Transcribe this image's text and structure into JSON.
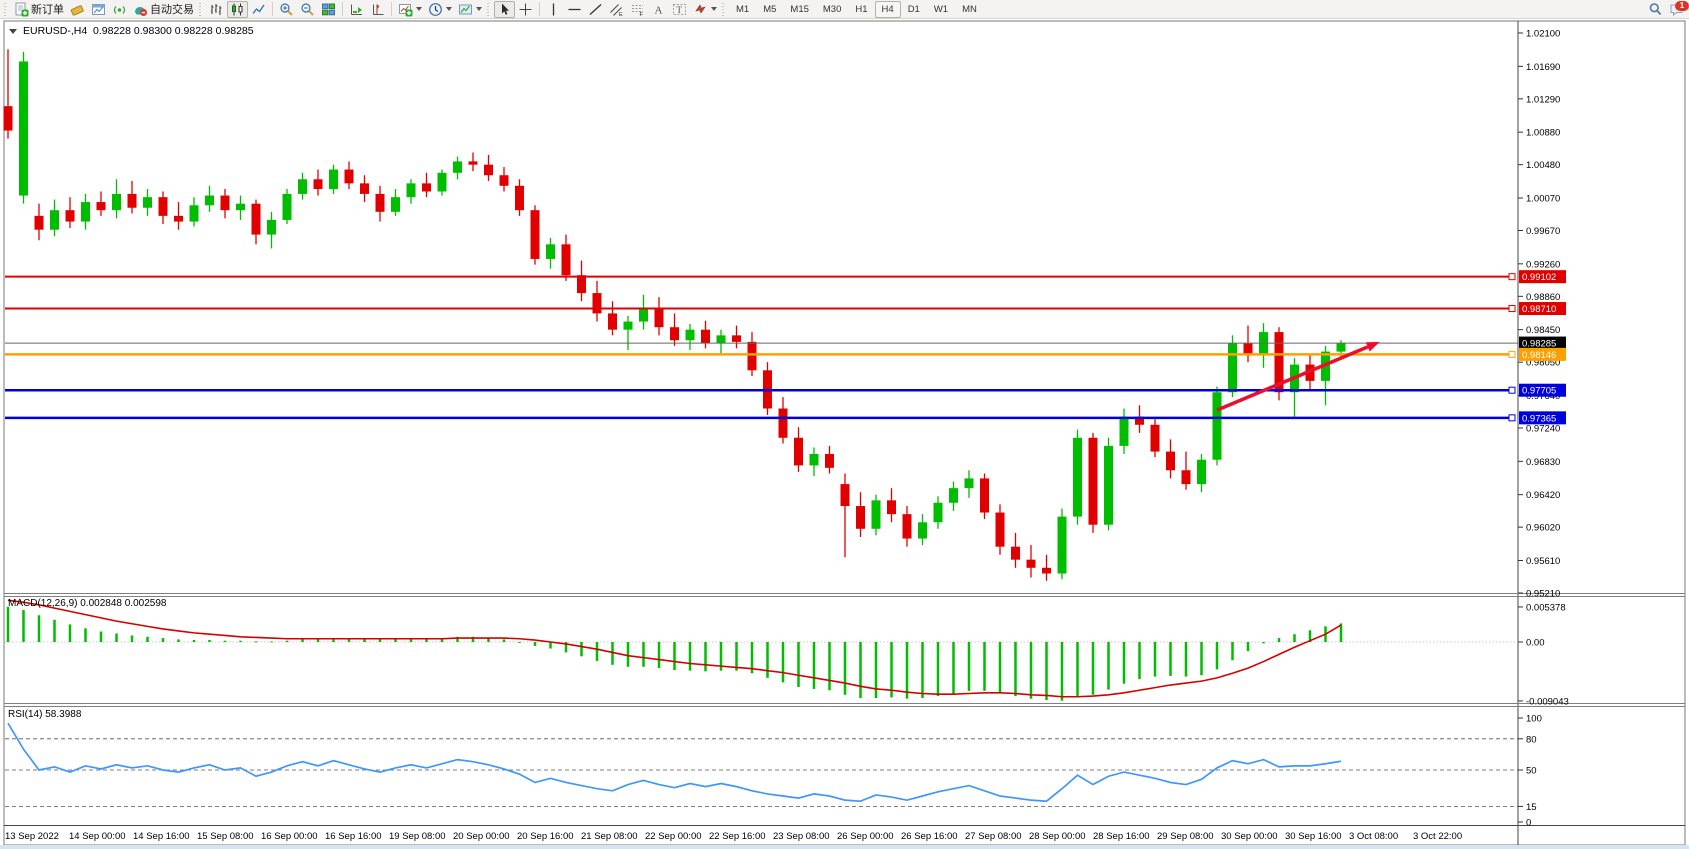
{
  "toolbar": {
    "new_order_label": "新订单",
    "autotrading_label": "自动交易",
    "timeframes": [
      "M1",
      "M5",
      "M15",
      "M30",
      "H1",
      "H4",
      "D1",
      "W1",
      "MN"
    ],
    "active_timeframe": "H4",
    "notification_count": "1"
  },
  "chart": {
    "title": "EURUSD-,H4",
    "ohlc_text": "0.98228 0.98300 0.98228 0.98285"
  },
  "macd_panel": {
    "label": "MACD(12,26,9)",
    "values_text": "0.002848 0.002598"
  },
  "rsi_panel": {
    "label": "RSI(14)",
    "value_text": "58.3988"
  },
  "chart_data": {
    "type": "candlestick-with-indicators",
    "symbol": "EURUSD-",
    "period": "H4",
    "ohlc_display": {
      "open": "0.98228",
      "high": "0.98300",
      "low": "0.98228",
      "close": "0.98285"
    },
    "price_axis_ticks": [
      "1.02100",
      "1.01690",
      "1.01290",
      "1.00880",
      "1.00480",
      "1.00070",
      "0.99670",
      "0.99260",
      "0.98860",
      "0.98450",
      "0.98050",
      "0.97640",
      "0.97240",
      "0.96830",
      "0.96420",
      "0.96020",
      "0.95610",
      "0.95210"
    ],
    "date_axis_ticks": [
      "13 Sep 2022",
      "14 Sep 00:00",
      "14 Sep 16:00",
      "15 Sep 08:00",
      "16 Sep 00:00",
      "16 Sep 16:00",
      "19 Sep 08:00",
      "20 Sep 00:00",
      "20 Sep 16:00",
      "21 Sep 08:00",
      "22 Sep 00:00",
      "22 Sep 16:00",
      "23 Sep 08:00",
      "26 Sep 00:00",
      "26 Sep 16:00",
      "27 Sep 08:00",
      "28 Sep 00:00",
      "28 Sep 16:00",
      "29 Sep 08:00",
      "30 Sep 00:00",
      "30 Sep 16:00",
      "3 Oct 08:00",
      "3 Oct 22:00"
    ],
    "bid_line": {
      "price": 0.98285,
      "label": "0.98285",
      "color": "#000000"
    },
    "horizontal_lines": [
      {
        "price": 0.99102,
        "label": "0.99102",
        "color": "#e00000",
        "width": 2
      },
      {
        "price": 0.9871,
        "label": "0.98710",
        "color": "#e00000",
        "width": 2
      },
      {
        "price": 0.98146,
        "label": "0.98146",
        "color": "#ffa000",
        "width": 2.5
      },
      {
        "price": 0.97705,
        "label": "0.97705",
        "color": "#0000dd",
        "width": 2.5
      },
      {
        "price": 0.97365,
        "label": "0.97365",
        "color": "#0000dd",
        "width": 2.5
      }
    ],
    "trend_arrow": {
      "start": {
        "index": 78,
        "price": 0.9746
      },
      "end": {
        "index": 88.5,
        "price": 0.983
      },
      "color": "#e8112d"
    },
    "colors": {
      "up": "#00bd00",
      "down": "#e10000",
      "macd_bar": "#00bd00",
      "macd_signal": "#d40000",
      "rsi_line": "#3e97fb"
    },
    "candles": [
      [
        1.012,
        1.019,
        1.008,
        1.009
      ],
      [
        1.001,
        1.0187,
        1.0,
        1.0175
      ],
      [
        0.9985,
        1.0,
        0.9955,
        0.9968
      ],
      [
        0.9968,
        1.0005,
        0.996,
        0.9992
      ],
      [
        0.9992,
        1.0008,
        0.997,
        0.9978
      ],
      [
        0.9978,
        1.0012,
        0.9968,
        1.0002
      ],
      [
        1.0002,
        1.0015,
        0.9985,
        0.9992
      ],
      [
        0.9992,
        1.003,
        0.9982,
        1.0012
      ],
      [
        1.0012,
        1.0028,
        0.9988,
        0.9995
      ],
      [
        0.9995,
        1.0018,
        0.9985,
        1.0008
      ],
      [
        1.0008,
        1.0015,
        0.9975,
        0.9985
      ],
      [
        0.9985,
        1.0002,
        0.9968,
        0.9978
      ],
      [
        0.9978,
        1.0008,
        0.9972,
        0.9998
      ],
      [
        0.9998,
        1.0022,
        0.999,
        1.001
      ],
      [
        1.001,
        1.0018,
        0.9982,
        0.9992
      ],
      [
        0.9992,
        1.001,
        0.998,
        1.0
      ],
      [
        1.0,
        1.0005,
        0.995,
        0.9962
      ],
      [
        0.9962,
        0.999,
        0.9945,
        0.998
      ],
      [
        0.998,
        1.0018,
        0.9975,
        1.0012
      ],
      [
        1.0012,
        1.0038,
        1.0005,
        1.003
      ],
      [
        1.003,
        1.0042,
        1.001,
        1.0018
      ],
      [
        1.0018,
        1.0048,
        1.0012,
        1.0042
      ],
      [
        1.0042,
        1.0052,
        1.0018,
        1.0025
      ],
      [
        1.0025,
        1.0035,
        1.0002,
        1.0012
      ],
      [
        1.0012,
        1.0022,
        0.9978,
        0.999
      ],
      [
        0.999,
        1.0018,
        0.9985,
        1.0008
      ],
      [
        1.0008,
        1.003,
        1.0,
        1.0025
      ],
      [
        1.0025,
        1.0038,
        1.0008,
        1.0015
      ],
      [
        1.0015,
        1.0042,
        1.001,
        1.0038
      ],
      [
        1.0038,
        1.0058,
        1.003,
        1.0052
      ],
      [
        1.0052,
        1.0063,
        1.004,
        1.0048
      ],
      [
        1.0048,
        1.006,
        1.0028,
        1.0035
      ],
      [
        1.0035,
        1.0045,
        1.0015,
        1.0022
      ],
      [
        1.0022,
        1.003,
        0.9985,
        0.9992
      ],
      [
        0.9992,
        0.9998,
        0.9925,
        0.9932
      ],
      [
        0.9932,
        0.9958,
        0.992,
        0.995
      ],
      [
        0.995,
        0.9962,
        0.9905,
        0.9912
      ],
      [
        0.9912,
        0.993,
        0.988,
        0.989
      ],
      [
        0.989,
        0.9905,
        0.9855,
        0.9865
      ],
      [
        0.9865,
        0.988,
        0.9838,
        0.9845
      ],
      [
        0.9845,
        0.9862,
        0.982,
        0.9855
      ],
      [
        0.9855,
        0.9888,
        0.9845,
        0.9872
      ],
      [
        0.9872,
        0.9885,
        0.9838,
        0.9848
      ],
      [
        0.9848,
        0.9865,
        0.9825,
        0.9832
      ],
      [
        0.9832,
        0.9852,
        0.982,
        0.9845
      ],
      [
        0.9845,
        0.9856,
        0.9822,
        0.9828
      ],
      [
        0.9828,
        0.9845,
        0.9815,
        0.9838
      ],
      [
        0.9838,
        0.985,
        0.9822,
        0.983
      ],
      [
        0.983,
        0.9842,
        0.9788,
        0.9795
      ],
      [
        0.9795,
        0.9805,
        0.974,
        0.9748
      ],
      [
        0.9748,
        0.9762,
        0.9705,
        0.9712
      ],
      [
        0.9712,
        0.9725,
        0.967,
        0.9678
      ],
      [
        0.9678,
        0.97,
        0.9665,
        0.9692
      ],
      [
        0.9692,
        0.9702,
        0.9668,
        0.9675
      ],
      [
        0.9655,
        0.9668,
        0.9565,
        0.9628
      ],
      [
        0.9628,
        0.9645,
        0.959,
        0.96
      ],
      [
        0.96,
        0.9642,
        0.9592,
        0.9635
      ],
      [
        0.9635,
        0.965,
        0.9608,
        0.9618
      ],
      [
        0.9618,
        0.9628,
        0.9578,
        0.9588
      ],
      [
        0.9588,
        0.9618,
        0.958,
        0.9608
      ],
      [
        0.9608,
        0.964,
        0.96,
        0.9632
      ],
      [
        0.9632,
        0.9658,
        0.9622,
        0.965
      ],
      [
        0.965,
        0.9672,
        0.9638,
        0.9662
      ],
      [
        0.9662,
        0.9668,
        0.9612,
        0.962
      ],
      [
        0.962,
        0.963,
        0.9568,
        0.9578
      ],
      [
        0.9578,
        0.9595,
        0.9552,
        0.9562
      ],
      [
        0.9562,
        0.958,
        0.954,
        0.9552
      ],
      [
        0.9552,
        0.9568,
        0.9536,
        0.9545
      ],
      [
        0.9545,
        0.9625,
        0.9538,
        0.9615
      ],
      [
        0.9615,
        0.9722,
        0.9605,
        0.9712
      ],
      [
        0.9712,
        0.9718,
        0.9595,
        0.9605
      ],
      [
        0.9605,
        0.9712,
        0.9598,
        0.9702
      ],
      [
        0.9702,
        0.9748,
        0.9692,
        0.9738
      ],
      [
        0.9738,
        0.9752,
        0.9718,
        0.9728
      ],
      [
        0.9728,
        0.9735,
        0.9688,
        0.9695
      ],
      [
        0.9695,
        0.971,
        0.9662,
        0.9672
      ],
      [
        0.9672,
        0.9695,
        0.9648,
        0.9655
      ],
      [
        0.9655,
        0.9692,
        0.9645,
        0.9685
      ],
      [
        0.9685,
        0.9775,
        0.9678,
        0.9768
      ],
      [
        0.9768,
        0.9838,
        0.9762,
        0.9828
      ],
      [
        0.9828,
        0.985,
        0.9805,
        0.9815
      ],
      [
        0.9815,
        0.9853,
        0.9798,
        0.9842
      ],
      [
        0.9842,
        0.9848,
        0.9758,
        0.9768
      ],
      [
        0.9768,
        0.981,
        0.9738,
        0.9802
      ],
      [
        0.9802,
        0.9815,
        0.9772,
        0.9782
      ],
      [
        0.9782,
        0.9825,
        0.9752,
        0.9818
      ],
      [
        0.9818,
        0.9832,
        0.9808,
        0.98285
      ]
    ],
    "macd": {
      "axis_labels": [
        "0.005378",
        "0.00",
        "-0.009043"
      ],
      "current_macd": 0.002848,
      "current_signal": 0.002598,
      "histogram": [
        0.0054,
        0.0049,
        0.0041,
        0.0034,
        0.0027,
        0.0021,
        0.0016,
        0.0013,
        0.001,
        0.0008,
        0.0006,
        0.0004,
        0.0003,
        0.0003,
        0.0002,
        0.0002,
        0.0001,
        0.0001,
        0.0002,
        0.0004,
        0.0004,
        0.0005,
        0.0006,
        0.0005,
        0.0004,
        0.0004,
        0.0005,
        0.0005,
        0.0006,
        0.0008,
        0.0008,
        0.0007,
        0.0004,
        0.0,
        -0.0006,
        -0.001,
        -0.0016,
        -0.0022,
        -0.0029,
        -0.0035,
        -0.0038,
        -0.0038,
        -0.004,
        -0.0043,
        -0.0044,
        -0.0045,
        -0.0044,
        -0.0044,
        -0.0048,
        -0.0055,
        -0.0062,
        -0.0069,
        -0.0072,
        -0.0074,
        -0.0081,
        -0.0086,
        -0.0086,
        -0.0085,
        -0.0087,
        -0.0086,
        -0.0083,
        -0.0079,
        -0.0075,
        -0.0075,
        -0.0079,
        -0.0083,
        -0.0087,
        -0.0089,
        -0.009,
        -0.0083,
        -0.0081,
        -0.0073,
        -0.0064,
        -0.0057,
        -0.0053,
        -0.0052,
        -0.0053,
        -0.0051,
        -0.0042,
        -0.0028,
        -0.0014,
        -0.0002,
        0.0006,
        0.0012,
        0.0018,
        0.0024,
        0.002848
      ],
      "signal": [
        0.0064,
        0.0061,
        0.0057,
        0.0052,
        0.0047,
        0.0042,
        0.0037,
        0.0032,
        0.0028,
        0.0024,
        0.002,
        0.0017,
        0.0014,
        0.0012,
        0.001,
        0.0008,
        0.0007,
        0.0006,
        0.0005,
        0.0005,
        0.0005,
        0.0005,
        0.0005,
        0.0005,
        0.0005,
        0.0005,
        0.0005,
        0.0005,
        0.0005,
        0.0006,
        0.0006,
        0.0006,
        0.0006,
        0.0005,
        0.0003,
        0.0,
        -0.0003,
        -0.0007,
        -0.0011,
        -0.0016,
        -0.0021,
        -0.0024,
        -0.0027,
        -0.003,
        -0.0033,
        -0.0035,
        -0.0037,
        -0.0039,
        -0.0041,
        -0.0044,
        -0.0047,
        -0.0051,
        -0.0055,
        -0.0059,
        -0.0063,
        -0.0068,
        -0.0072,
        -0.0074,
        -0.0077,
        -0.0079,
        -0.008,
        -0.008,
        -0.0079,
        -0.0078,
        -0.0078,
        -0.0079,
        -0.0081,
        -0.0082,
        -0.0084,
        -0.0084,
        -0.0083,
        -0.0081,
        -0.0078,
        -0.0074,
        -0.007,
        -0.0066,
        -0.0063,
        -0.006,
        -0.0055,
        -0.0048,
        -0.004,
        -0.003,
        -0.0019,
        -0.0008,
        0.0002,
        0.0012,
        0.002598
      ]
    },
    "rsi": {
      "axis_labels": [
        "100",
        "80",
        "50",
        "15",
        "0"
      ],
      "dashed_levels": [
        80,
        50,
        15
      ],
      "current": 58.3988,
      "values": [
        95,
        70,
        50,
        53,
        48,
        54,
        51,
        55,
        52,
        54,
        50,
        48,
        52,
        55,
        50,
        52,
        44,
        48,
        54,
        58,
        54,
        59,
        55,
        51,
        48,
        52,
        55,
        52,
        56,
        60,
        58,
        55,
        51,
        46,
        38,
        42,
        38,
        35,
        32,
        30,
        36,
        40,
        36,
        33,
        37,
        34,
        37,
        34,
        30,
        27,
        25,
        23,
        27,
        25,
        21,
        20,
        26,
        24,
        21,
        25,
        29,
        32,
        35,
        30,
        25,
        23,
        21,
        20,
        32,
        45,
        36,
        44,
        48,
        45,
        42,
        38,
        36,
        41,
        52,
        59,
        56,
        60,
        53,
        54,
        54,
        56,
        58.3988
      ]
    }
  }
}
